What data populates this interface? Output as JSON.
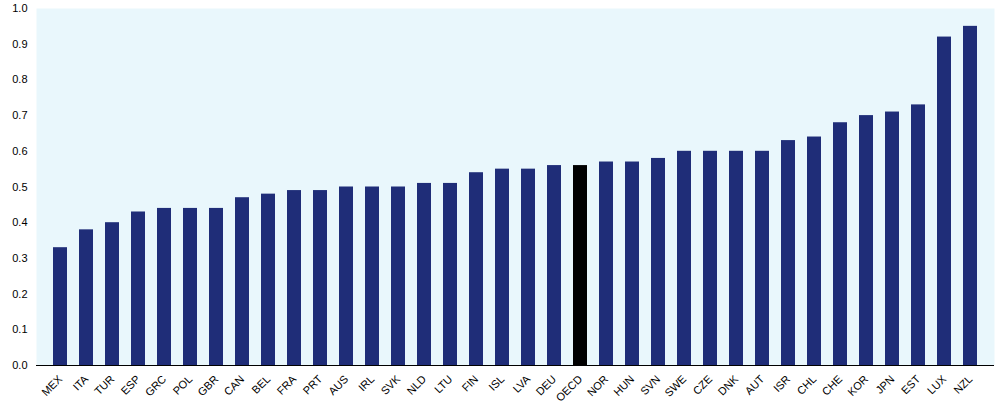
{
  "chart_data": {
    "type": "bar",
    "categories": [
      "MEX",
      "ITA",
      "TUR",
      "ESP",
      "GRC",
      "POL",
      "GBR",
      "CAN",
      "BEL",
      "FRA",
      "PRT",
      "AUS",
      "IRL",
      "SVK",
      "NLD",
      "LTU",
      "FIN",
      "ISL",
      "LVA",
      "DEU",
      "OECD",
      "NOR",
      "HUN",
      "SVN",
      "SWE",
      "CZE",
      "DNK",
      "AUT",
      "ISR",
      "CHL",
      "CHE",
      "KOR",
      "JPN",
      "EST",
      "LUX",
      "NZL"
    ],
    "values": [
      0.33,
      0.38,
      0.4,
      0.43,
      0.44,
      0.44,
      0.44,
      0.47,
      0.48,
      0.49,
      0.49,
      0.5,
      0.5,
      0.5,
      0.51,
      0.51,
      0.54,
      0.55,
      0.55,
      0.56,
      0.56,
      0.57,
      0.57,
      0.58,
      0.6,
      0.6,
      0.6,
      0.6,
      0.63,
      0.64,
      0.68,
      0.7,
      0.71,
      0.73,
      0.92,
      0.95
    ],
    "colors": [
      "#1f2d78",
      "#1f2d78",
      "#1f2d78",
      "#1f2d78",
      "#1f2d78",
      "#1f2d78",
      "#1f2d78",
      "#1f2d78",
      "#1f2d78",
      "#1f2d78",
      "#1f2d78",
      "#1f2d78",
      "#1f2d78",
      "#1f2d78",
      "#1f2d78",
      "#1f2d78",
      "#1f2d78",
      "#1f2d78",
      "#1f2d78",
      "#1f2d78",
      "#000000",
      "#1f2d78",
      "#1f2d78",
      "#1f2d78",
      "#1f2d78",
      "#1f2d78",
      "#1f2d78",
      "#1f2d78",
      "#1f2d78",
      "#1f2d78",
      "#1f2d78",
      "#1f2d78",
      "#1f2d78",
      "#1f2d78",
      "#1f2d78",
      "#1f2d78"
    ],
    "ylim": [
      0,
      1
    ],
    "yticks": [
      {
        "value": 0,
        "label": "0.0"
      },
      {
        "value": 0.1,
        "label": "0.1"
      },
      {
        "value": 0.2,
        "label": "0.2"
      },
      {
        "value": 0.3,
        "label": "0.3"
      },
      {
        "value": 0.4,
        "label": "0.4"
      },
      {
        "value": 0.5,
        "label": "0.5"
      },
      {
        "value": 0.6,
        "label": "0.6"
      },
      {
        "value": 0.7,
        "label": "0.7"
      },
      {
        "value": 0.8,
        "label": "0.8"
      },
      {
        "value": 0.9,
        "label": "0.9"
      },
      {
        "value": 1,
        "label": "1.0"
      }
    ],
    "grid": false
  }
}
